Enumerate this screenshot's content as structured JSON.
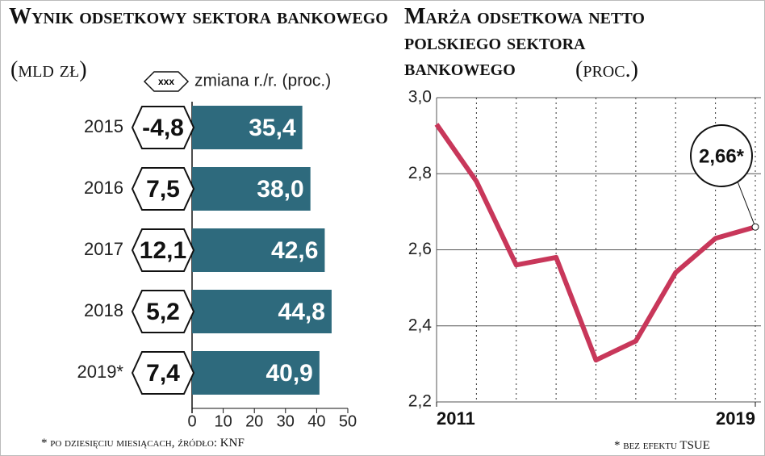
{
  "chart_data": [
    {
      "type": "hbar",
      "title": "Wynik odsetkowy sektora bankowego",
      "subtitle": "(mld zł)",
      "categories": [
        "2015",
        "2016",
        "2017",
        "2018",
        "2019*"
      ],
      "values": [
        35.4,
        38.0,
        42.6,
        44.8,
        40.9
      ],
      "value_labels": [
        "35,4",
        "38,0",
        "42,6",
        "44,8",
        "40,9"
      ],
      "color": "#2e6a7d",
      "change": {
        "name": "zmiana r./r. (proc.)",
        "marker_label": "xxx",
        "values": [
          -4.8,
          7.5,
          12.1,
          5.2,
          7.4
        ],
        "value_labels": [
          "-4,8",
          "7,5",
          "12,1",
          "5,2",
          "7,4"
        ]
      },
      "xlim": [
        0,
        50
      ],
      "xticks": [
        0,
        10,
        20,
        30,
        40,
        50
      ],
      "footnote": "* po dziesięciu miesiącach, źródło: KNF"
    },
    {
      "type": "line",
      "title": "Marża odsetkowa netto polskiego sektora bankowego",
      "subtitle": "(proc.)",
      "x": [
        2011,
        2012,
        2013,
        2014,
        2015,
        2016,
        2017,
        2018,
        2019
      ],
      "values": [
        2.93,
        2.78,
        2.56,
        2.58,
        2.31,
        2.36,
        2.54,
        2.63,
        2.66
      ],
      "color": "#c8375a",
      "xlim": [
        2011,
        2019
      ],
      "xticks": [
        2011,
        2019
      ],
      "ylim": [
        2.2,
        3.0
      ],
      "yticks": [
        {
          "value": 2.2,
          "label": "2,2"
        },
        {
          "value": 2.4,
          "label": "2,4"
        },
        {
          "value": 2.6,
          "label": "2,6"
        },
        {
          "value": 2.8,
          "label": "2,8"
        },
        {
          "value": 3.0,
          "label": "3,0"
        }
      ],
      "grid": true,
      "annotation": "2,66*",
      "footnote": "* bez efektu TSUE"
    }
  ]
}
